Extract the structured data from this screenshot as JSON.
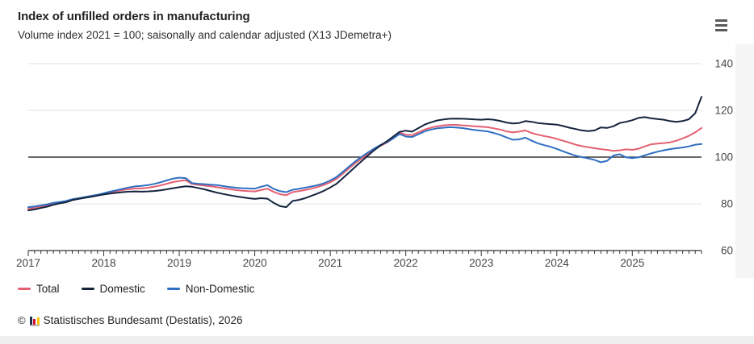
{
  "header": {
    "title": "Index of unfilled orders in manufacturing",
    "subtitle": "Volume index 2021 = 100; saisonally and calendar adjusted (X13 JDemetra+)",
    "menu_icon": "hamburger-menu-icon"
  },
  "chart_data": {
    "type": "line",
    "title": "Index of unfilled orders in manufacturing",
    "subtitle": "Volume index 2021 = 100; saisonally and calendar adjusted (X13 JDemetra+)",
    "x_frequency": "monthly",
    "x_range": [
      "2017-01",
      "2025-12"
    ],
    "x_tick_labels": [
      "2017",
      "2018",
      "2019",
      "2020",
      "2021",
      "2022",
      "2023",
      "2024",
      "2025"
    ],
    "ylim": [
      60,
      140
    ],
    "y_ticks": [
      60,
      80,
      100,
      120,
      140
    ],
    "reference_line": 100,
    "grid": true,
    "legend_position": "bottom-left",
    "series": [
      {
        "name": "Total",
        "color": "#e46072",
        "values": [
          78.0,
          78.2,
          78.7,
          79.2,
          79.9,
          80.4,
          80.9,
          81.7,
          82.2,
          82.7,
          83.2,
          83.7,
          84.3,
          84.9,
          85.4,
          85.9,
          86.3,
          86.6,
          86.6,
          86.9,
          87.3,
          87.9,
          88.6,
          89.3,
          89.8,
          90.1,
          88.5,
          88.1,
          87.8,
          87.5,
          87.1,
          86.7,
          86.3,
          85.9,
          85.6,
          85.4,
          85.3,
          85.9,
          86.5,
          85.1,
          84.1,
          83.7,
          85.0,
          85.4,
          85.9,
          86.5,
          87.2,
          88.1,
          89.2,
          90.7,
          92.9,
          95.2,
          97.4,
          99.4,
          101.4,
          103.2,
          104.9,
          106.2,
          108.0,
          110.6,
          109.6,
          109.4,
          110.6,
          111.8,
          112.6,
          113.2,
          113.6,
          113.8,
          113.8,
          113.6,
          113.4,
          113.2,
          113.0,
          112.8,
          112.3,
          111.8,
          111.0,
          110.6,
          110.9,
          111.4,
          110.3,
          109.6,
          109.0,
          108.5,
          107.8,
          107.0,
          106.2,
          105.3,
          104.7,
          104.2,
          103.8,
          103.4,
          103.1,
          102.7,
          102.9,
          103.3,
          103.1,
          103.6,
          104.6,
          105.5,
          105.8,
          106.0,
          106.3,
          107.0,
          108.0,
          109.1,
          110.6,
          112.5
        ]
      },
      {
        "name": "Domestic",
        "color": "#14243e",
        "values": [
          77.2,
          77.6,
          78.2,
          78.8,
          79.6,
          80.2,
          80.7,
          81.6,
          82.1,
          82.6,
          83.0,
          83.5,
          84.0,
          84.4,
          84.7,
          85.0,
          85.2,
          85.3,
          85.2,
          85.3,
          85.5,
          85.8,
          86.2,
          86.7,
          87.1,
          87.5,
          87.3,
          86.8,
          86.2,
          85.5,
          84.8,
          84.2,
          83.7,
          83.2,
          82.8,
          82.4,
          82.1,
          82.4,
          82.2,
          80.4,
          79.0,
          78.6,
          81.2,
          81.7,
          82.4,
          83.4,
          84.4,
          85.6,
          87.0,
          88.6,
          91.0,
          93.4,
          95.9,
          98.3,
          100.7,
          103.0,
          105.0,
          106.8,
          108.8,
          110.8,
          111.3,
          110.9,
          112.4,
          113.9,
          114.9,
          115.7,
          116.1,
          116.4,
          116.5,
          116.4,
          116.3,
          116.1,
          116.0,
          116.2,
          116.0,
          115.5,
          114.8,
          114.4,
          114.6,
          115.4,
          115.1,
          114.6,
          114.3,
          114.1,
          113.9,
          113.3,
          112.6,
          112.0,
          111.4,
          111.1,
          111.4,
          112.7,
          112.5,
          113.2,
          114.6,
          115.1,
          115.8,
          116.8,
          117.1,
          116.6,
          116.3,
          116.0,
          115.4,
          115.1,
          115.4,
          116.2,
          118.8,
          125.8
        ]
      },
      {
        "name": "Non-Domestic",
        "color": "#2f6fc1",
        "values": [
          78.6,
          78.9,
          79.3,
          79.8,
          80.4,
          80.8,
          81.2,
          82.0,
          82.4,
          82.9,
          83.4,
          83.9,
          84.5,
          85.2,
          85.8,
          86.4,
          87.0,
          87.5,
          87.7,
          88.0,
          88.5,
          89.2,
          90.0,
          90.8,
          91.2,
          91.0,
          88.9,
          88.6,
          88.4,
          88.2,
          88.0,
          87.6,
          87.2,
          86.9,
          86.7,
          86.6,
          86.5,
          87.3,
          88.0,
          86.4,
          85.4,
          85.0,
          86.0,
          86.4,
          86.9,
          87.4,
          88.0,
          88.8,
          90.0,
          91.5,
          93.7,
          96.0,
          98.2,
          100.2,
          102.0,
          103.7,
          105.2,
          106.4,
          108.0,
          109.9,
          108.8,
          108.6,
          109.8,
          111.0,
          111.8,
          112.3,
          112.6,
          112.8,
          112.7,
          112.4,
          112.0,
          111.6,
          111.3,
          111.0,
          110.3,
          109.5,
          108.4,
          107.4,
          107.6,
          108.3,
          107.0,
          105.9,
          105.1,
          104.4,
          103.5,
          102.5,
          101.5,
          100.6,
          100.0,
          99.4,
          98.8,
          97.8,
          98.4,
          100.7,
          101.2,
          99.9,
          99.6,
          99.9,
          100.8,
          101.6,
          102.3,
          102.9,
          103.4,
          103.8,
          104.1,
          104.6,
          105.3,
          105.6
        ]
      }
    ]
  },
  "footer": {
    "copyright_symbol": "©",
    "source": "Statistisches Bundesamt (Destatis), 2026",
    "logo_icon": "destatis-bar-chart-logo",
    "logo_colors": {
      "navy": "#1d2d50",
      "red": "#d51130",
      "yellow": "#f8c200",
      "baseline_gray": "#b5b5b5"
    }
  },
  "colors": {
    "background": "#ffffff",
    "gridline": "#e2e2e2",
    "reference_line": "#111111",
    "axis_line": "#333333",
    "axis_text": "#454545",
    "page_band": "#f0f0f1"
  }
}
